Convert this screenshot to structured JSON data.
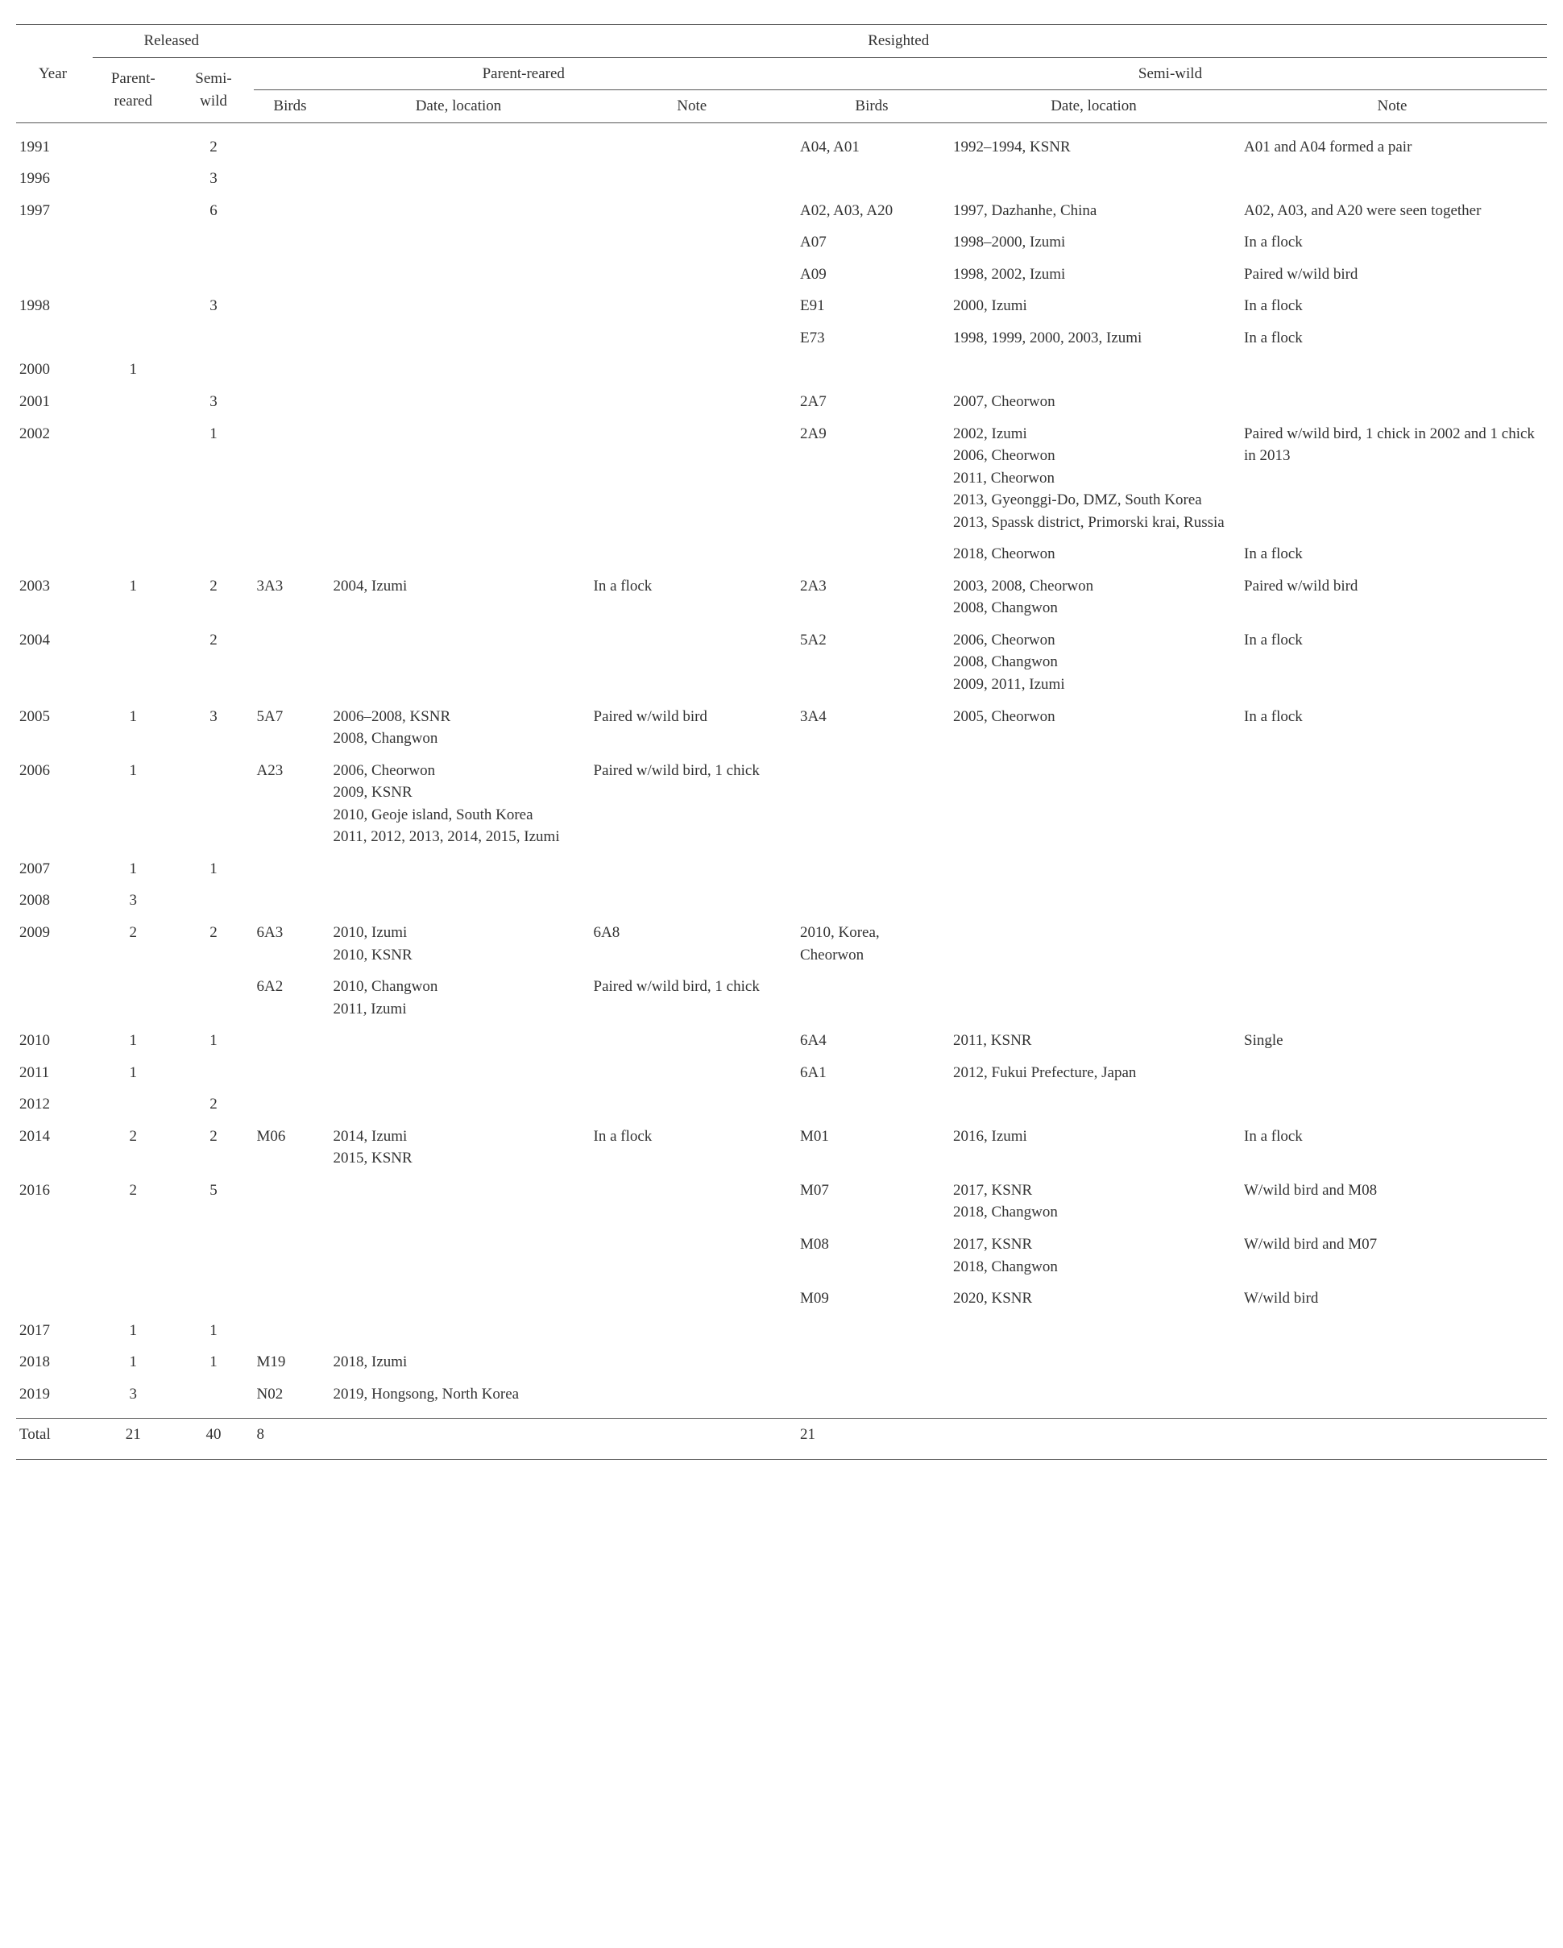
{
  "header": {
    "year": "Year",
    "released": "Released",
    "resighted": "Resighted",
    "parent_reared": "Parent-reared",
    "semi_wild": "Semi-wild",
    "pr_short": "Parent-\nreared",
    "sw_short": "Semi-\nwild",
    "birds": "Birds",
    "date_loc": "Date, location",
    "note": "Note"
  },
  "rows": [
    {
      "year": "1991",
      "pr": "",
      "sw": "2",
      "pr_b": "",
      "pr_loc": "",
      "pr_note": "",
      "sw_b": "A04, A01",
      "sw_loc": "1992–1994, KSNR",
      "sw_note": "A01 and A04 formed a pair"
    },
    {
      "year": "1996",
      "pr": "",
      "sw": "3",
      "pr_b": "",
      "pr_loc": "",
      "pr_note": "",
      "sw_b": "",
      "sw_loc": "",
      "sw_note": ""
    },
    {
      "year": "1997",
      "pr": "",
      "sw": "6",
      "pr_b": "",
      "pr_loc": "",
      "pr_note": "",
      "sw_b": "A02, A03, A20",
      "sw_loc": "1997, Dazhanhe, China",
      "sw_note": "A02, A03, and A20 were seen together"
    },
    {
      "year": "",
      "pr": "",
      "sw": "",
      "pr_b": "",
      "pr_loc": "",
      "pr_note": "",
      "sw_b": "A07",
      "sw_loc": "1998–2000, Izumi",
      "sw_note": "In a flock"
    },
    {
      "year": "",
      "pr": "",
      "sw": "",
      "pr_b": "",
      "pr_loc": "",
      "pr_note": "",
      "sw_b": "A09",
      "sw_loc": "1998, 2002, Izumi",
      "sw_note": "Paired w/wild bird"
    },
    {
      "year": "1998",
      "pr": "",
      "sw": "3",
      "pr_b": "",
      "pr_loc": "",
      "pr_note": "",
      "sw_b": "E91",
      "sw_loc": "2000, Izumi",
      "sw_note": "In a flock"
    },
    {
      "year": "",
      "pr": "",
      "sw": "",
      "pr_b": "",
      "pr_loc": "",
      "pr_note": "",
      "sw_b": "E73",
      "sw_loc": "1998, 1999, 2000, 2003, Izumi",
      "sw_note": "In a flock"
    },
    {
      "year": "2000",
      "pr": "1",
      "sw": "",
      "pr_b": "",
      "pr_loc": "",
      "pr_note": "",
      "sw_b": "",
      "sw_loc": "",
      "sw_note": ""
    },
    {
      "year": "2001",
      "pr": "",
      "sw": "3",
      "pr_b": "",
      "pr_loc": "",
      "pr_note": "",
      "sw_b": "2A7",
      "sw_loc": "2007, Cheorwon",
      "sw_note": ""
    },
    {
      "year": "2002",
      "pr": "",
      "sw": "1",
      "pr_b": "",
      "pr_loc": "",
      "pr_note": "",
      "sw_b": "2A9",
      "sw_loc": "2002, Izumi\n2006, Cheorwon\n2011, Cheorwon\n2013, Gyeonggi-Do, DMZ, South Korea\n2013, Spassk district, Primorski krai, Russia",
      "sw_note": "Paired w/wild bird, 1 chick in 2002 and 1 chick in 2013"
    },
    {
      "year": "",
      "pr": "",
      "sw": "",
      "pr_b": "",
      "pr_loc": "",
      "pr_note": "",
      "sw_b": "",
      "sw_loc": "2018, Cheorwon",
      "sw_note": "In a flock"
    },
    {
      "year": "2003",
      "pr": "1",
      "sw": "2",
      "pr_b": "3A3",
      "pr_loc": "2004, Izumi",
      "pr_note": "In a flock",
      "sw_b": "2A3",
      "sw_loc": "2003, 2008, Cheorwon\n2008, Changwon",
      "sw_note": "Paired w/wild bird"
    },
    {
      "year": "2004",
      "pr": "",
      "sw": "2",
      "pr_b": "",
      "pr_loc": "",
      "pr_note": "",
      "sw_b": "5A2",
      "sw_loc": "2006, Cheorwon\n2008, Changwon\n2009, 2011, Izumi",
      "sw_note": "In a flock"
    },
    {
      "year": "2005",
      "pr": "1",
      "sw": "3",
      "pr_b": "5A7",
      "pr_loc": "2006–2008, KSNR\n2008, Changwon",
      "pr_note": "Paired w/wild bird",
      "sw_b": "3A4",
      "sw_loc": "2005, Cheorwon",
      "sw_note": "In a flock"
    },
    {
      "year": "2006",
      "pr": "1",
      "sw": "",
      "pr_b": "A23",
      "pr_loc": "2006, Cheorwon\n2009, KSNR\n2010, Geoje island, South Korea\n2011, 2012, 2013, 2014, 2015, Izumi",
      "pr_note": "Paired w/wild bird, 1 chick",
      "sw_b": "",
      "sw_loc": "",
      "sw_note": ""
    },
    {
      "year": "2007",
      "pr": "1",
      "sw": "1",
      "pr_b": "",
      "pr_loc": "",
      "pr_note": "",
      "sw_b": "",
      "sw_loc": "",
      "sw_note": ""
    },
    {
      "year": "2008",
      "pr": "3",
      "sw": "",
      "pr_b": "",
      "pr_loc": "",
      "pr_note": "",
      "sw_b": "",
      "sw_loc": "",
      "sw_note": ""
    },
    {
      "year": "2009",
      "pr": "2",
      "sw": "2",
      "pr_b": "6A3",
      "pr_loc": "2010, Izumi\n2010, KSNR",
      "pr_note": "6A8",
      "sw_b": "2010, Korea, Cheorwon",
      "sw_loc": "",
      "sw_note": ""
    },
    {
      "year": "",
      "pr": "",
      "sw": "",
      "pr_b": "6A2",
      "pr_loc": "2010, Changwon\n2011, Izumi",
      "pr_note": "Paired w/wild bird, 1 chick",
      "sw_b": "",
      "sw_loc": "",
      "sw_note": ""
    },
    {
      "year": "2010",
      "pr": "1",
      "sw": "1",
      "pr_b": "",
      "pr_loc": "",
      "pr_note": "",
      "sw_b": "6A4",
      "sw_loc": "2011, KSNR",
      "sw_note": "Single"
    },
    {
      "year": "2011",
      "pr": "1",
      "sw": "",
      "pr_b": "",
      "pr_loc": "",
      "pr_note": "",
      "sw_b": "6A1",
      "sw_loc": "2012, Fukui Prefecture, Japan",
      "sw_note": ""
    },
    {
      "year": "2012",
      "pr": "",
      "sw": "2",
      "pr_b": "",
      "pr_loc": "",
      "pr_note": "",
      "sw_b": "",
      "sw_loc": "",
      "sw_note": ""
    },
    {
      "year": "2014",
      "pr": "2",
      "sw": "2",
      "pr_b": "M06",
      "pr_loc": "2014, Izumi\n2015, KSNR",
      "pr_note": "In a flock",
      "sw_b": "M01",
      "sw_loc": "2016, Izumi",
      "sw_note": "In a flock"
    },
    {
      "year": "2016",
      "pr": "2",
      "sw": "5",
      "pr_b": "",
      "pr_loc": "",
      "pr_note": "",
      "sw_b": "M07",
      "sw_loc": "2017, KSNR\n2018, Changwon",
      "sw_note": "W/wild bird and M08"
    },
    {
      "year": "",
      "pr": "",
      "sw": "",
      "pr_b": "",
      "pr_loc": "",
      "pr_note": "",
      "sw_b": "M08",
      "sw_loc": "2017, KSNR\n2018, Changwon",
      "sw_note": "W/wild bird and M07"
    },
    {
      "year": "",
      "pr": "",
      "sw": "",
      "pr_b": "",
      "pr_loc": "",
      "pr_note": "",
      "sw_b": "M09",
      "sw_loc": "2020, KSNR",
      "sw_note": "W/wild bird"
    },
    {
      "year": "2017",
      "pr": "1",
      "sw": "1",
      "pr_b": "",
      "pr_loc": "",
      "pr_note": "",
      "sw_b": "",
      "sw_loc": "",
      "sw_note": ""
    },
    {
      "year": "2018",
      "pr": "1",
      "sw": "1",
      "pr_b": "M19",
      "pr_loc": "2018, Izumi",
      "pr_note": "",
      "sw_b": "",
      "sw_loc": "",
      "sw_note": ""
    },
    {
      "year": "2019",
      "pr": "3",
      "sw": "",
      "pr_b": "N02",
      "pr_loc": "2019, Hongsong, North Korea",
      "pr_note": "",
      "sw_b": "",
      "sw_loc": "",
      "sw_note": ""
    }
  ],
  "total": {
    "label": "Total",
    "pr": "21",
    "sw": "40",
    "pr_birds": "8",
    "sw_birds": "21"
  }
}
